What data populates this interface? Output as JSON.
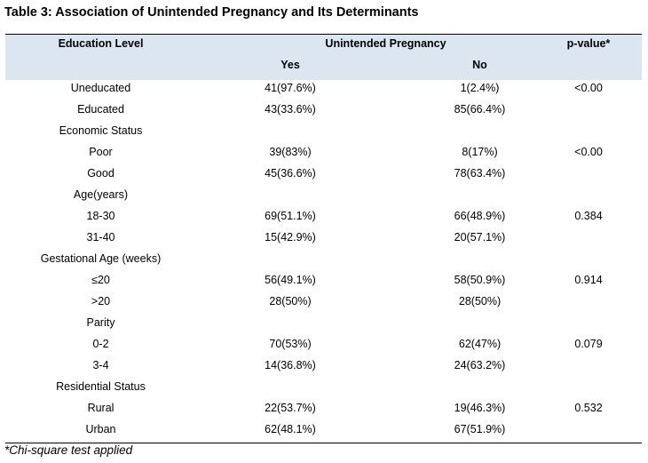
{
  "title": "Table 3: Association of Unintended Pregnancy and Its Determinants",
  "header": {
    "col_education": "Education Level",
    "col_group": "Unintended Pregnancy",
    "col_pvalue": "p-value*",
    "sub_yes": "Yes",
    "sub_no": "No"
  },
  "rows": [
    {
      "label": "Uneducated",
      "yes": "41(97.6%)",
      "no": "1(2.4%)",
      "p": "<0.00"
    },
    {
      "label": "Educated",
      "yes": "43(33.6%)",
      "no": "85(66.4%)",
      "p": ""
    },
    {
      "label": "Economic Status",
      "yes": "",
      "no": "",
      "p": ""
    },
    {
      "label": "Poor",
      "yes": "39(83%)",
      "no": "8(17%)",
      "p": "<0.00"
    },
    {
      "label": "Good",
      "yes": "45(36.6%)",
      "no": "78(63.4%)",
      "p": ""
    },
    {
      "label": "Age(years)",
      "yes": "",
      "no": "",
      "p": ""
    },
    {
      "label": "18-30",
      "yes": "69(51.1%)",
      "no": "66(48.9%)",
      "p": "0.384"
    },
    {
      "label": "31-40",
      "yes": "15(42.9%)",
      "no": "20(57.1%)",
      "p": ""
    },
    {
      "label": "Gestational Age (weeks)",
      "yes": "",
      "no": "",
      "p": ""
    },
    {
      "label": "≤20",
      "yes": "56(49.1%)",
      "no": "58(50.9%)",
      "p": "0.914"
    },
    {
      "label": ">20",
      "yes": "28(50%)",
      "no": "28(50%)",
      "p": ""
    },
    {
      "label": "Parity",
      "yes": "",
      "no": "",
      "p": ""
    },
    {
      "label": "0-2",
      "yes": "70(53%)",
      "no": "62(47%)",
      "p": "0.079"
    },
    {
      "label": "3-4",
      "yes": "14(36.8%)",
      "no": "24(63.2%)",
      "p": ""
    },
    {
      "label": "Residential Status",
      "yes": "",
      "no": "",
      "p": ""
    },
    {
      "label": "Rural",
      "yes": "22(53.7%)",
      "no": "19(46.3%)",
      "p": "0.532"
    },
    {
      "label": "Urban",
      "yes": "62(48.1%)",
      "no": "67(51.9%)",
      "p": ""
    }
  ],
  "footnote": "*Chi-square test applied"
}
